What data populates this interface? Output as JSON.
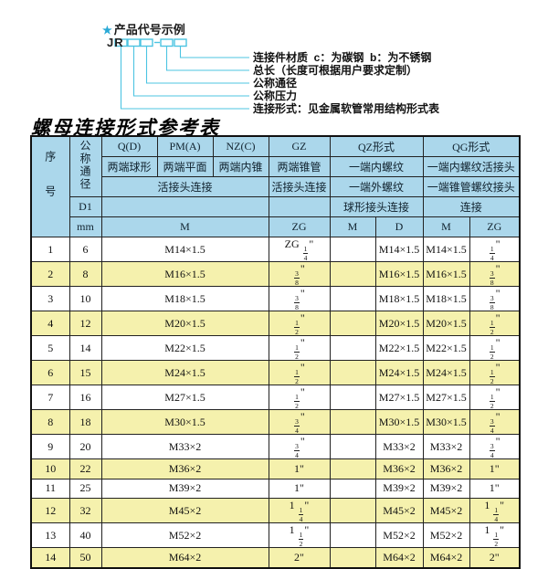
{
  "colors": {
    "accent_cyan": "#4cc4e2",
    "star_blue": "#29a9d6",
    "header_blue": "#abd7eb",
    "row_yellow": "#f5f1ad",
    "border_black": "#111111"
  },
  "diagram": {
    "star": "★",
    "title": "产品代号示例",
    "prefix": "JR",
    "labels": [
      "连接件材质  c：为碳钢  b：为不锈钢",
      "总长（长度可根据用户要求定制）",
      "公称通径",
      "公称压力",
      "连接形式：见金属软管常用结构形式表"
    ]
  },
  "table": {
    "title": "螺母连接形式参考表",
    "header": {
      "seq": "序号",
      "dn": "公称通径",
      "q": "Q(D)",
      "pm": "PM(A)",
      "nz": "NZ(C)",
      "gz": "GZ",
      "qz": "QZ形式",
      "qg": "QG形式",
      "q_desc": "两端球形",
      "pm_desc": "两端平面",
      "nz_desc": "两端内锥",
      "gz_desc": "两端锥管",
      "qz_desc": "一端内螺纹",
      "qg_desc": "一端内螺纹活接头",
      "qpmnz_conn": "活接头连接",
      "gz_conn": "活接头连接",
      "qz_desc2": "一端外螺纹",
      "qg_desc2": "一端锥管螺纹接头",
      "d1": "D1",
      "qz_conn": "球形接头连接",
      "qg_conn": "连接",
      "mm": "mm",
      "m1": "M",
      "zg1": "ZG",
      "m2": "M",
      "d": "D",
      "m3": "M",
      "zg2": "ZG"
    },
    "rows": [
      [
        "1",
        "6",
        "M14×1.5",
        "ZG 1/4\"",
        "",
        "M14×1.5",
        "M14×1.5",
        "1/4\""
      ],
      [
        "2",
        "8",
        "M16×1.5",
        "3/8\"",
        "",
        "M16×1.5",
        "M16×1.5",
        "3/8\""
      ],
      [
        "3",
        "10",
        "M18×1.5",
        "3/8\"",
        "",
        "M18×1.5",
        "M18×1.5",
        "3/8\""
      ],
      [
        "4",
        "12",
        "M20×1.5",
        "1/2\"",
        "",
        "M20×1.5",
        "M20×1.5",
        "1/2\""
      ],
      [
        "5",
        "14",
        "M22×1.5",
        "1/2\"",
        "",
        "M22×1.5",
        "M22×1.5",
        "1/2\""
      ],
      [
        "6",
        "15",
        "M24×1.5",
        "1/2\"",
        "",
        "M24×1.5",
        "M24×1.5",
        "1/2\""
      ],
      [
        "7",
        "16",
        "M27×1.5",
        "1/2\"",
        "",
        "M27×1.5",
        "M27×1.5",
        "1/2\""
      ],
      [
        "8",
        "18",
        "M30×1.5",
        "3/4\"",
        "",
        "M30×1.5",
        "M30×1.5",
        "3/4\""
      ],
      [
        "9",
        "20",
        "M33×2",
        "3/4\"",
        "",
        "M33×2",
        "M33×2",
        "3/4\""
      ],
      [
        "10",
        "22",
        "M36×2",
        "1\"",
        "",
        "M36×2",
        "M36×2",
        "1\""
      ],
      [
        "11",
        "25",
        "M39×2",
        "1\"",
        "",
        "M39×2",
        "M39×2",
        "1\""
      ],
      [
        "12",
        "32",
        "M45×2",
        "1 1/4\"",
        "",
        "M45×2",
        "M45×2",
        "1 1/4\""
      ],
      [
        "13",
        "40",
        "M52×2",
        "1 1/2\"",
        "",
        "M52×2",
        "M52×2",
        "1 1/2\""
      ],
      [
        "14",
        "50",
        "M64×2",
        "2\"",
        "",
        "M64×2",
        "M64×2",
        "2\""
      ]
    ]
  }
}
